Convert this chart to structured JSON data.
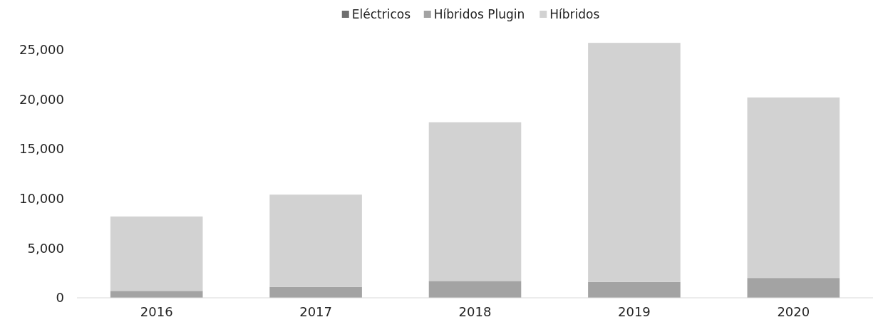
{
  "chart_data": {
    "type": "bar",
    "stacked": true,
    "categories": [
      "2016",
      "2017",
      "2018",
      "2019",
      "2020"
    ],
    "series": [
      {
        "name": "Eléctricos",
        "color": "#6e6e6e",
        "values": [
          null,
          null,
          null,
          null,
          null
        ]
      },
      {
        "name": "Híbridos Plugin",
        "color": "#a3a3a3",
        "values": [
          700,
          1100,
          1700,
          1600,
          2000
        ]
      },
      {
        "name": "Híbridos",
        "color": "#d2d2d2",
        "values": [
          7500,
          9300,
          16000,
          24100,
          18200
        ]
      }
    ],
    "ylim": [
      0,
      26000
    ],
    "yticks": [
      {
        "value": 0,
        "label": "0"
      },
      {
        "value": 5000,
        "label": "5,000"
      },
      {
        "value": 10000,
        "label": "10,000"
      },
      {
        "value": 15000,
        "label": "15,000"
      },
      {
        "value": 20000,
        "label": "20,000"
      },
      {
        "value": 25000,
        "label": "25,000"
      }
    ],
    "legend": "top",
    "grid": false
  }
}
